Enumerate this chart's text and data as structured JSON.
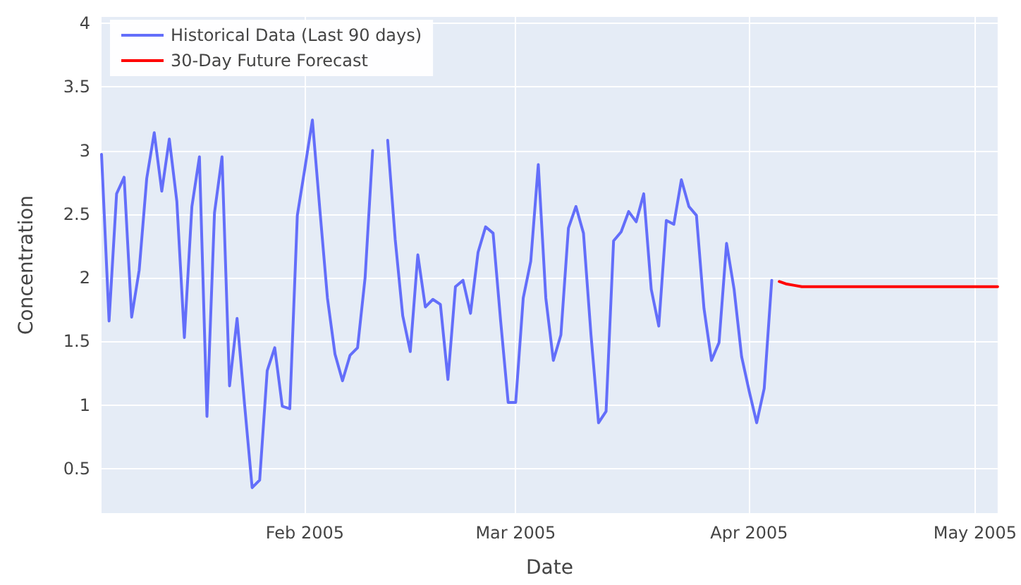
{
  "chart_data": {
    "type": "line",
    "xlabel": "Date",
    "ylabel": "Concentration",
    "xlim": [
      "2005-01-05",
      "2005-05-04"
    ],
    "xticks": [
      {
        "value": "2005-02-01",
        "label": "Feb 2005"
      },
      {
        "value": "2005-03-01",
        "label": "Mar 2005"
      },
      {
        "value": "2005-04-01",
        "label": "Apr 2005"
      },
      {
        "value": "2005-05-01",
        "label": "May 2005"
      }
    ],
    "ylim": [
      0.15,
      4.05
    ],
    "yticks": [
      0.5,
      1,
      1.5,
      2,
      2.5,
      3,
      3.5,
      4
    ],
    "grid": true,
    "legend": "top left",
    "marker": "none",
    "line_style": "solid",
    "series": [
      {
        "name": "Historical Data (Last 90 days)",
        "color": "#636efa",
        "x": [
          "2005-01-05",
          "2005-01-06",
          "2005-01-07",
          "2005-01-08",
          "2005-01-09",
          "2005-01-10",
          "2005-01-11",
          "2005-01-12",
          "2005-01-13",
          "2005-01-14",
          "2005-01-15",
          "2005-01-16",
          "2005-01-17",
          "2005-01-18",
          "2005-01-19",
          "2005-01-20",
          "2005-01-21",
          "2005-01-22",
          "2005-01-23",
          "2005-01-24",
          "2005-01-25",
          "2005-01-26",
          "2005-01-27",
          "2005-01-28",
          "2005-01-29",
          "2005-01-30",
          "2005-01-31",
          "2005-02-01",
          "2005-02-02",
          "2005-02-03",
          "2005-02-04",
          "2005-02-05",
          "2005-02-06",
          "2005-02-07",
          "2005-02-08",
          "2005-02-09",
          "2005-02-10",
          "2005-02-11",
          "2005-02-12",
          "2005-02-13",
          "2005-02-14",
          "2005-02-15",
          "2005-02-16",
          "2005-02-17",
          "2005-02-18",
          "2005-02-19",
          "2005-02-20",
          "2005-02-21",
          "2005-02-22",
          "2005-02-23",
          "2005-02-24",
          "2005-02-25",
          "2005-02-26",
          "2005-02-27",
          "2005-02-28",
          "2005-03-01",
          "2005-03-02",
          "2005-03-03",
          "2005-03-04",
          "2005-03-05",
          "2005-03-06",
          "2005-03-07",
          "2005-03-08",
          "2005-03-09",
          "2005-03-10",
          "2005-03-11",
          "2005-03-12",
          "2005-03-13",
          "2005-03-14",
          "2005-03-15",
          "2005-03-16",
          "2005-03-17",
          "2005-03-18",
          "2005-03-19",
          "2005-03-20",
          "2005-03-21",
          "2005-03-22",
          "2005-03-23",
          "2005-03-24",
          "2005-03-25",
          "2005-03-26",
          "2005-03-27",
          "2005-03-28",
          "2005-03-29",
          "2005-03-30",
          "2005-03-31",
          "2005-04-01",
          "2005-04-02",
          "2005-04-03",
          "2005-04-04"
        ],
        "values": [
          2.97,
          1.66,
          2.66,
          2.79,
          1.69,
          2.06,
          2.78,
          3.14,
          2.68,
          3.09,
          2.6,
          1.53,
          2.56,
          2.95,
          0.91,
          2.51,
          2.95,
          1.15,
          1.68,
          1.0,
          0.35,
          0.41,
          1.27,
          1.45,
          0.99,
          0.97,
          2.49,
          2.86,
          3.24,
          2.53,
          1.84,
          1.4,
          1.19,
          1.39,
          1.45,
          2.0,
          3.0,
          null,
          3.08,
          2.3,
          1.7,
          1.42,
          2.18,
          1.77,
          1.83,
          1.79,
          1.2,
          1.93,
          1.98,
          1.72,
          2.2,
          2.4,
          2.35,
          1.66,
          1.02,
          1.02,
          1.84,
          2.13,
          2.89,
          1.84,
          1.35,
          1.55,
          2.39,
          2.56,
          2.35,
          1.55,
          0.86,
          0.95,
          2.29,
          2.36,
          2.52,
          2.44,
          2.66,
          1.91,
          1.62,
          2.45,
          2.42,
          2.77,
          2.56,
          2.49,
          1.76,
          1.35,
          1.49,
          2.27,
          1.91,
          1.38,
          1.11,
          0.86,
          1.13,
          1.98
        ]
      },
      {
        "name": "30-Day Future Forecast",
        "color": "#ff0000",
        "x": [
          "2005-04-05",
          "2005-04-06",
          "2005-04-07",
          "2005-04-08",
          "2005-04-09",
          "2005-04-10",
          "2005-04-11",
          "2005-04-12",
          "2005-04-13",
          "2005-04-14",
          "2005-04-15",
          "2005-04-16",
          "2005-04-17",
          "2005-04-18",
          "2005-04-19",
          "2005-04-20",
          "2005-04-21",
          "2005-04-22",
          "2005-04-23",
          "2005-04-24",
          "2005-04-25",
          "2005-04-26",
          "2005-04-27",
          "2005-04-28",
          "2005-04-29",
          "2005-04-30",
          "2005-05-01",
          "2005-05-02",
          "2005-05-03",
          "2005-05-04"
        ],
        "values": [
          1.97,
          1.95,
          1.94,
          1.93,
          1.93,
          1.93,
          1.93,
          1.93,
          1.93,
          1.93,
          1.93,
          1.93,
          1.93,
          1.93,
          1.93,
          1.93,
          1.93,
          1.93,
          1.93,
          1.93,
          1.93,
          1.93,
          1.93,
          1.93,
          1.93,
          1.93,
          1.93,
          1.93,
          1.93,
          1.93
        ]
      }
    ]
  }
}
